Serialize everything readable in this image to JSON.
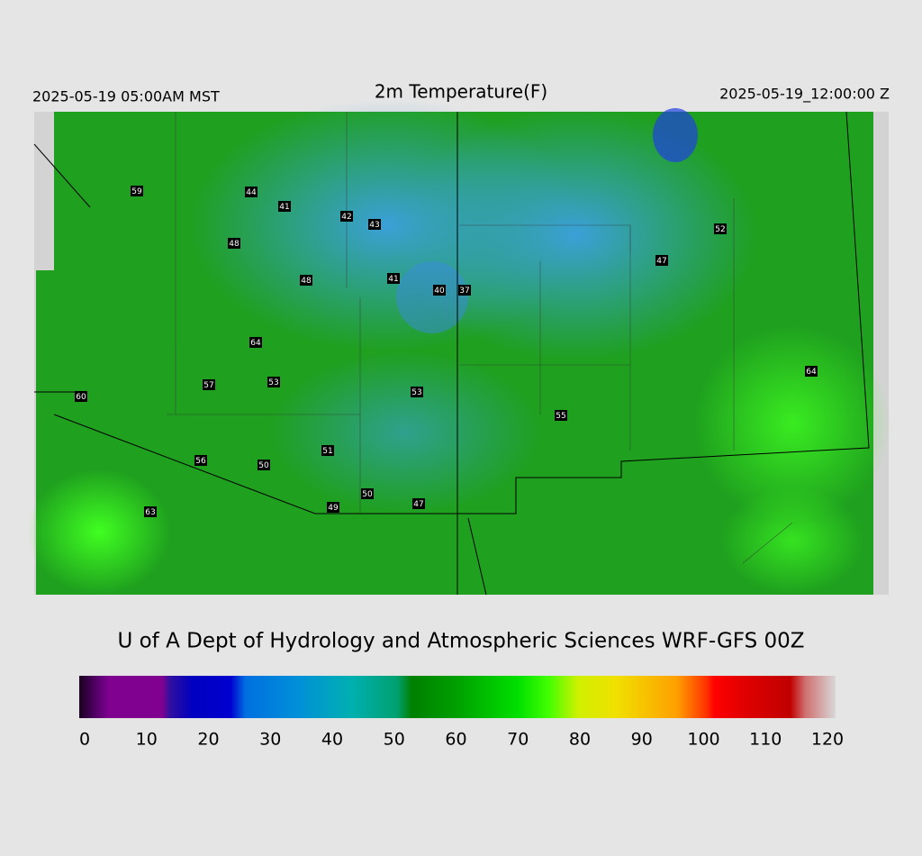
{
  "header": {
    "title": "2m Temperature(F)",
    "local_time": "2025-05-19 05:00AM MST",
    "valid_time": "2025-05-19_12:00:00 Z"
  },
  "stations": [
    59,
    44,
    41,
    42,
    43,
    48,
    48,
    41,
    40,
    37,
    52,
    47,
    64,
    57,
    53,
    53,
    64,
    60,
    55,
    51,
    56,
    50,
    50,
    49,
    47,
    63
  ],
  "credit": "U of A Dept of Hydrology and Atmospheric Sciences WRF-GFS 00Z",
  "colorbar": {
    "lim": [
      0,
      120
    ],
    "ticks": [
      0,
      10,
      20,
      30,
      40,
      50,
      60,
      70,
      80,
      90,
      100,
      110,
      120
    ]
  }
}
